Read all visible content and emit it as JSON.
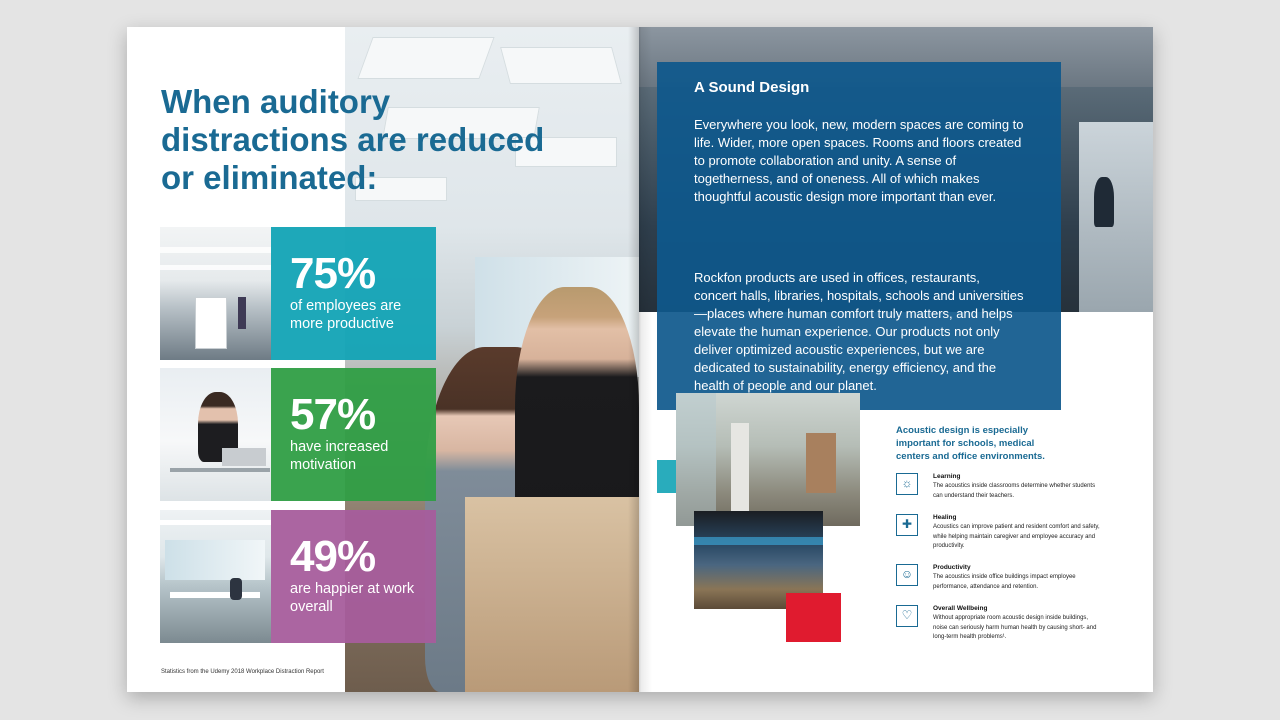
{
  "left_page": {
    "headline": "When auditory distractions are reduced or eliminated:",
    "stats": [
      {
        "percent": "75%",
        "text": "of employees are more productive",
        "color": "#12a3b5"
      },
      {
        "percent": "57%",
        "text": "have increased motivation",
        "color": "#2f9e45"
      },
      {
        "percent": "49%",
        "text": "are happier at work overall",
        "color": "#a75d9c"
      }
    ],
    "source_note": "Statistics from the Udemy 2018 Workplace Distraction Report"
  },
  "right_page": {
    "section_title": "A Sound Design",
    "paragraph_1": "Everywhere you look, new, modern spaces are coming to life. Wider, more open spaces. Rooms and floors created to promote collaboration and unity. A sense of togetherness, and of oneness. All of which makes thoughtful acoustic design more important than ever.",
    "paragraph_2": "Rockfon products are used in offices, restaurants, concert halls, libraries, hospitals, schools and universities—places where human comfort truly matters, and helps elevate the human experience. Our products not only deliver optimized acoustic experiences, but we are dedicated to sustainability, energy efficiency, and the health of people and our planet.",
    "side_heading": "Acoustic design is especially important for schools, medical centers and office environments.",
    "items": [
      {
        "title": "Learning",
        "text": "The acoustics inside classrooms determine whether students can understand their teachers.",
        "icon": "lightbulb-icon"
      },
      {
        "title": "Healing",
        "text": "Acoustics can improve patient and resident comfort and safety, while helping maintain caregiver and employee accuracy and productivity.",
        "icon": "medical-cross-icon"
      },
      {
        "title": "Productivity",
        "text": "The acoustics inside office buildings impact employee performance, attendance and retention.",
        "icon": "smiley-icon"
      },
      {
        "title": "Overall Wellbeing",
        "text": "Without appropriate room acoustic design inside buildings, noise can seriously harm human health by causing short- and long-term health problems¹.",
        "icon": "heart-plus-icon"
      }
    ],
    "accent_colors": {
      "teal": "#12a3b5",
      "red": "#e01b2f",
      "blue": "#0e588c"
    }
  }
}
